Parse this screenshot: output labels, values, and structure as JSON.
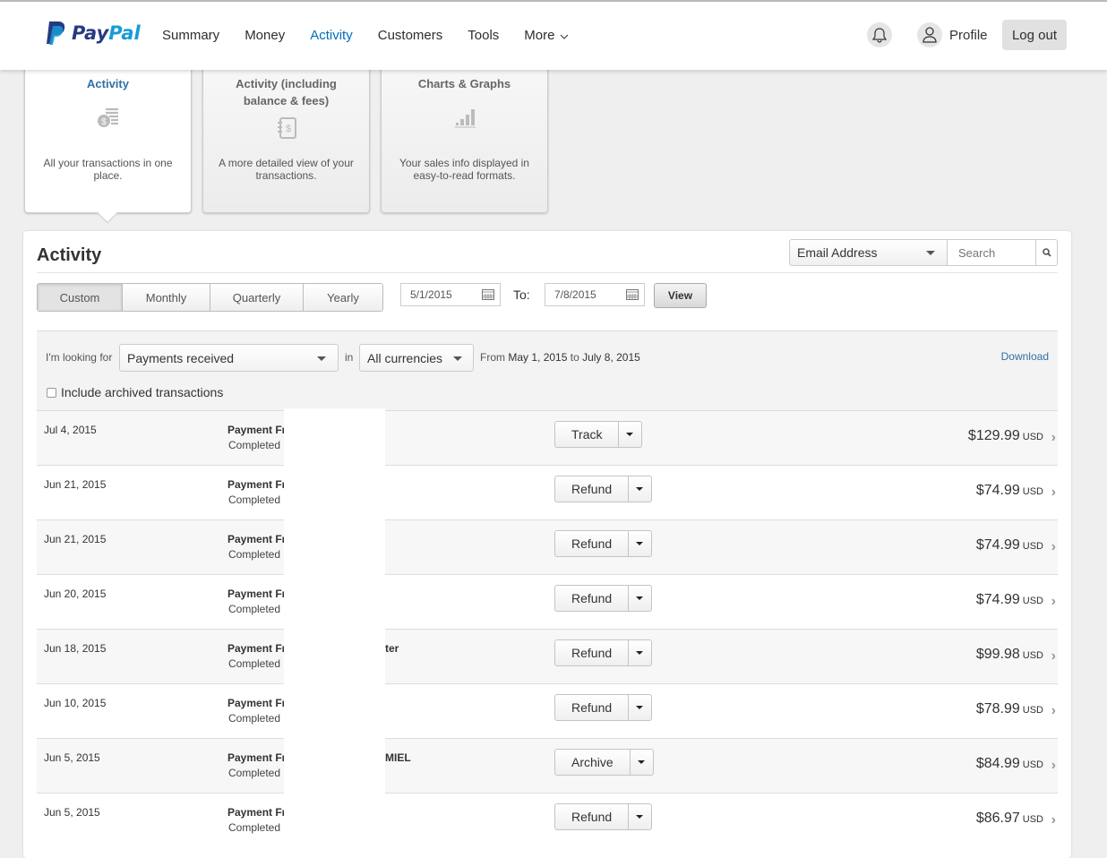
{
  "header": {
    "brand": "PayPal",
    "nav": [
      "Summary",
      "Money",
      "Activity",
      "Customers",
      "Tools",
      "More"
    ],
    "active_nav": "Activity",
    "profile": "Profile",
    "logout": "Log out",
    "brand_colors": [
      "#253b80",
      "#179bd7"
    ]
  },
  "tabs": [
    {
      "title": "Activity",
      "desc": "All your transactions in one place.",
      "icon": "coin-list-icon",
      "selected": true
    },
    {
      "title": "Activity (including balance & fees)",
      "desc": "A more detailed view of your transactions.",
      "icon": "ledger-dollar-icon",
      "selected": false
    },
    {
      "title": "Charts & Graphs",
      "desc": "Your sales info displayed in easy-to-read formats.",
      "icon": "bar-chart-icon",
      "selected": false
    }
  ],
  "panel": {
    "title": "Activity",
    "search_field": "Email Address",
    "search_placeholder": "Search",
    "periods": [
      "Custom",
      "Monthly",
      "Quarterly",
      "Yearly"
    ],
    "active_period": "Custom",
    "date_from": "5/1/2015",
    "to_label": "To:",
    "date_to": "7/8/2015",
    "view": "View"
  },
  "filter": {
    "looking_for_label": "I'm looking for",
    "type": "Payments received",
    "in_label": "in",
    "currency": "All currencies",
    "from_label": "From",
    "from_date": "May 1, 2015",
    "to_label": "to",
    "to_date": "July 8, 2015",
    "download": "Download",
    "archived_label": "Include archived transactions",
    "archived_checked": false
  },
  "transactions": [
    {
      "date": "Jul 4, 2015",
      "name": "Payment Fr",
      "suffix": "",
      "status": "Completed",
      "action": "Track",
      "amount": "$129.99",
      "currency": "USD"
    },
    {
      "date": "Jun 21, 2015",
      "name": "Payment Fr",
      "suffix": "",
      "status": "Completed",
      "action": "Refund",
      "amount": "$74.99",
      "currency": "USD"
    },
    {
      "date": "Jun 21, 2015",
      "name": "Payment Fr",
      "suffix": "",
      "status": "Completed",
      "action": "Refund",
      "amount": "$74.99",
      "currency": "USD"
    },
    {
      "date": "Jun 20, 2015",
      "name": "Payment Fr",
      "suffix": "",
      "status": "Completed",
      "action": "Refund",
      "amount": "$74.99",
      "currency": "USD"
    },
    {
      "date": "Jun 18, 2015",
      "name": "Payment Fr",
      "suffix": "ter",
      "status": "Completed",
      "action": "Refund",
      "amount": "$99.98",
      "currency": "USD"
    },
    {
      "date": "Jun 10, 2015",
      "name": "Payment Fr",
      "suffix": "",
      "status": "Completed",
      "action": "Refund",
      "amount": "$78.99",
      "currency": "USD"
    },
    {
      "date": "Jun 5, 2015",
      "name": "Payment Fr",
      "suffix": "MIEL",
      "status": "Completed",
      "action": "Archive",
      "amount": "$84.99",
      "currency": "USD"
    },
    {
      "date": "Jun 5, 2015",
      "name": "Payment Fr",
      "suffix": "",
      "status": "Completed",
      "action": "Refund",
      "amount": "$86.97",
      "currency": "USD"
    }
  ]
}
